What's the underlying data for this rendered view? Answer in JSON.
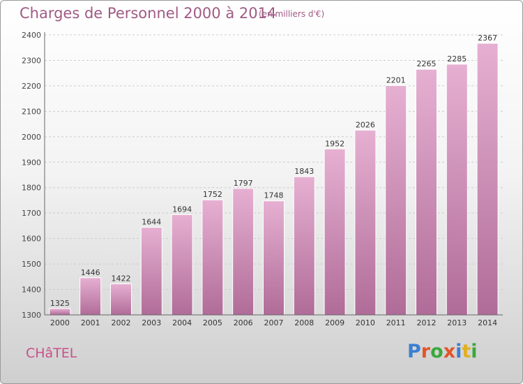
{
  "title": "Charges de Personnel 2000 à 2014",
  "subtitle": "(en milliers d'€)",
  "commune": "CHâTEL",
  "logo": {
    "letters": [
      "P",
      "r",
      "o",
      "x",
      "i",
      "t",
      "i"
    ],
    "colors": [
      "#3b7fd1",
      "#e2552a",
      "#3ba83b",
      "#e2552a",
      "#3b7fd1",
      "#e0b020",
      "#3ba83b"
    ]
  },
  "colors": {
    "bar_top": "#e6b0d2",
    "bar_bottom": "#b06c98",
    "bar_edge": "#ffffff",
    "title": "#a05a84",
    "axis": "#666666"
  },
  "chart_data": {
    "type": "bar",
    "categories": [
      "2000",
      "2001",
      "2002",
      "2003",
      "2004",
      "2005",
      "2006",
      "2007",
      "2008",
      "2009",
      "2010",
      "2011",
      "2012",
      "2013",
      "2014"
    ],
    "values": [
      1325,
      1446,
      1422,
      1644,
      1694,
      1752,
      1797,
      1748,
      1843,
      1952,
      2026,
      2201,
      2265,
      2285,
      2367
    ],
    "ylim": [
      1300,
      2400
    ],
    "yticks": [
      1300,
      1400,
      1500,
      1600,
      1700,
      1800,
      1900,
      2000,
      2100,
      2200,
      2300,
      2400
    ],
    "grid": true,
    "data_labels": true
  }
}
